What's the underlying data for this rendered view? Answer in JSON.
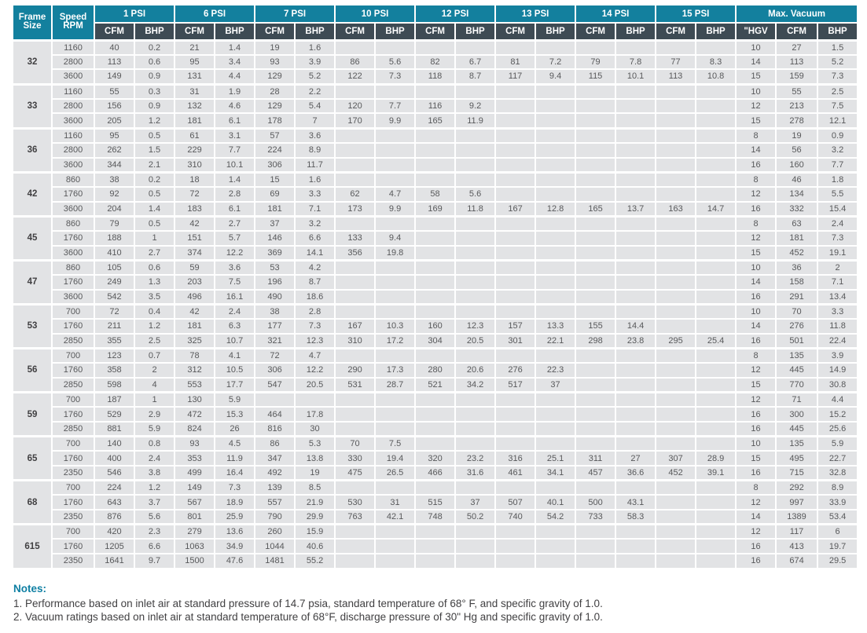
{
  "colors": {
    "header_teal": "#13809e",
    "subheader_slate": "#3e4b54",
    "cell_gray": "#e2e3e5",
    "notes_accent": "#0e7fa3"
  },
  "table": {
    "frame_header": {
      "line1": "Frame",
      "line2": "Size"
    },
    "speed_header": {
      "line1": "Speed",
      "line2": "RPM"
    },
    "psi_groups": [
      "1 PSI",
      "6 PSI",
      "7 PSI",
      "10 PSI",
      "12 PSI",
      "13 PSI",
      "14 PSI",
      "15 PSI"
    ],
    "psi_sub_headers": [
      "CFM",
      "BHP"
    ],
    "vacuum_group": "Max. Vacuum",
    "vacuum_sub_headers": [
      "\"HGV",
      "CFM",
      "BHP"
    ],
    "frames": [
      {
        "size": "32",
        "rows": [
          {
            "rpm": "1160",
            "cells": [
              "40",
              "0.2",
              "21",
              "1.4",
              "19",
              "1.6",
              "",
              "",
              "",
              "",
              "",
              "",
              "",
              "",
              "",
              "",
              "10",
              "27",
              "1.5"
            ]
          },
          {
            "rpm": "2800",
            "cells": [
              "113",
              "0.6",
              "95",
              "3.4",
              "93",
              "3.9",
              "86",
              "5.6",
              "82",
              "6.7",
              "81",
              "7.2",
              "79",
              "7.8",
              "77",
              "8.3",
              "14",
              "113",
              "5.2"
            ]
          },
          {
            "rpm": "3600",
            "cells": [
              "149",
              "0.9",
              "131",
              "4.4",
              "129",
              "5.2",
              "122",
              "7.3",
              "118",
              "8.7",
              "117",
              "9.4",
              "115",
              "10.1",
              "113",
              "10.8",
              "15",
              "159",
              "7.3"
            ]
          }
        ]
      },
      {
        "size": "33",
        "rows": [
          {
            "rpm": "1160",
            "cells": [
              "55",
              "0.3",
              "31",
              "1.9",
              "28",
              "2.2",
              "",
              "",
              "",
              "",
              "",
              "",
              "",
              "",
              "",
              "",
              "10",
              "55",
              "2.5"
            ]
          },
          {
            "rpm": "2800",
            "cells": [
              "156",
              "0.9",
              "132",
              "4.6",
              "129",
              "5.4",
              "120",
              "7.7",
              "116",
              "9.2",
              "",
              "",
              "",
              "",
              "",
              "",
              "12",
              "213",
              "7.5"
            ]
          },
          {
            "rpm": "3600",
            "cells": [
              "205",
              "1.2",
              "181",
              "6.1",
              "178",
              "7",
              "170",
              "9.9",
              "165",
              "11.9",
              "",
              "",
              "",
              "",
              "",
              "",
              "15",
              "278",
              "12.1"
            ]
          }
        ]
      },
      {
        "size": "36",
        "rows": [
          {
            "rpm": "1160",
            "cells": [
              "95",
              "0.5",
              "61",
              "3.1",
              "57",
              "3.6",
              "",
              "",
              "",
              "",
              "",
              "",
              "",
              "",
              "",
              "",
              "8",
              "19",
              "0.9"
            ]
          },
          {
            "rpm": "2800",
            "cells": [
              "262",
              "1.5",
              "229",
              "7.7",
              "224",
              "8.9",
              "",
              "",
              "",
              "",
              "",
              "",
              "",
              "",
              "",
              "",
              "14",
              "56",
              "3.2"
            ]
          },
          {
            "rpm": "3600",
            "cells": [
              "344",
              "2.1",
              "310",
              "10.1",
              "306",
              "11.7",
              "",
              "",
              "",
              "",
              "",
              "",
              "",
              "",
              "",
              "",
              "16",
              "160",
              "7.7"
            ]
          }
        ]
      },
      {
        "size": "42",
        "rows": [
          {
            "rpm": "860",
            "cells": [
              "38",
              "0.2",
              "18",
              "1.4",
              "15",
              "1.6",
              "",
              "",
              "",
              "",
              "",
              "",
              "",
              "",
              "",
              "",
              "8",
              "46",
              "1.8"
            ]
          },
          {
            "rpm": "1760",
            "cells": [
              "92",
              "0.5",
              "72",
              "2.8",
              "69",
              "3.3",
              "62",
              "4.7",
              "58",
              "5.6",
              "",
              "",
              "",
              "",
              "",
              "",
              "12",
              "134",
              "5.5"
            ]
          },
          {
            "rpm": "3600",
            "cells": [
              "204",
              "1.4",
              "183",
              "6.1",
              "181",
              "7.1",
              "173",
              "9.9",
              "169",
              "11.8",
              "167",
              "12.8",
              "165",
              "13.7",
              "163",
              "14.7",
              "16",
              "332",
              "15.4"
            ]
          }
        ]
      },
      {
        "size": "45",
        "rows": [
          {
            "rpm": "860",
            "cells": [
              "79",
              "0.5",
              "42",
              "2.7",
              "37",
              "3.2",
              "",
              "",
              "",
              "",
              "",
              "",
              "",
              "",
              "",
              "",
              "8",
              "63",
              "2.4"
            ]
          },
          {
            "rpm": "1760",
            "cells": [
              "188",
              "1",
              "151",
              "5.7",
              "146",
              "6.6",
              "133",
              "9.4",
              "",
              "",
              "",
              "",
              "",
              "",
              "",
              "",
              "12",
              "181",
              "7.3"
            ]
          },
          {
            "rpm": "3600",
            "cells": [
              "410",
              "2.7",
              "374",
              "12.2",
              "369",
              "14.1",
              "356",
              "19.8",
              "",
              "",
              "",
              "",
              "",
              "",
              "",
              "",
              "15",
              "452",
              "19.1"
            ]
          }
        ]
      },
      {
        "size": "47",
        "rows": [
          {
            "rpm": "860",
            "cells": [
              "105",
              "0.6",
              "59",
              "3.6",
              "53",
              "4.2",
              "",
              "",
              "",
              "",
              "",
              "",
              "",
              "",
              "",
              "",
              "10",
              "36",
              "2"
            ]
          },
          {
            "rpm": "1760",
            "cells": [
              "249",
              "1.3",
              "203",
              "7.5",
              "196",
              "8.7",
              "",
              "",
              "",
              "",
              "",
              "",
              "",
              "",
              "",
              "",
              "14",
              "158",
              "7.1"
            ]
          },
          {
            "rpm": "3600",
            "cells": [
              "542",
              "3.5",
              "496",
              "16.1",
              "490",
              "18.6",
              "",
              "",
              "",
              "",
              "",
              "",
              "",
              "",
              "",
              "",
              "16",
              "291",
              "13.4"
            ]
          }
        ]
      },
      {
        "size": "53",
        "rows": [
          {
            "rpm": "700",
            "cells": [
              "72",
              "0.4",
              "42",
              "2.4",
              "38",
              "2.8",
              "",
              "",
              "",
              "",
              "",
              "",
              "",
              "",
              "",
              "",
              "10",
              "70",
              "3.3"
            ]
          },
          {
            "rpm": "1760",
            "cells": [
              "211",
              "1.2",
              "181",
              "6.3",
              "177",
              "7.3",
              "167",
              "10.3",
              "160",
              "12.3",
              "157",
              "13.3",
              "155",
              "14.4",
              "",
              "",
              "14",
              "276",
              "11.8"
            ]
          },
          {
            "rpm": "2850",
            "cells": [
              "355",
              "2.5",
              "325",
              "10.7",
              "321",
              "12.3",
              "310",
              "17.2",
              "304",
              "20.5",
              "301",
              "22.1",
              "298",
              "23.8",
              "295",
              "25.4",
              "16",
              "501",
              "22.4"
            ]
          }
        ]
      },
      {
        "size": "56",
        "rows": [
          {
            "rpm": "700",
            "cells": [
              "123",
              "0.7",
              "78",
              "4.1",
              "72",
              "4.7",
              "",
              "",
              "",
              "",
              "",
              "",
              "",
              "",
              "",
              "",
              "8",
              "135",
              "3.9"
            ]
          },
          {
            "rpm": "1760",
            "cells": [
              "358",
              "2",
              "312",
              "10.5",
              "306",
              "12.2",
              "290",
              "17.3",
              "280",
              "20.6",
              "276",
              "22.3",
              "",
              "",
              "",
              "",
              "12",
              "445",
              "14.9"
            ]
          },
          {
            "rpm": "2850",
            "cells": [
              "598",
              "4",
              "553",
              "17.7",
              "547",
              "20.5",
              "531",
              "28.7",
              "521",
              "34.2",
              "517",
              "37",
              "",
              "",
              "",
              "",
              "15",
              "770",
              "30.8"
            ]
          }
        ]
      },
      {
        "size": "59",
        "rows": [
          {
            "rpm": "700",
            "cells": [
              "187",
              "1",
              "130",
              "5.9",
              "",
              "",
              "",
              "",
              "",
              "",
              "",
              "",
              "",
              "",
              "",
              "",
              "12",
              "71",
              "4.4"
            ]
          },
          {
            "rpm": "1760",
            "cells": [
              "529",
              "2.9",
              "472",
              "15.3",
              "464",
              "17.8",
              "",
              "",
              "",
              "",
              "",
              "",
              "",
              "",
              "",
              "",
              "16",
              "300",
              "15.2"
            ]
          },
          {
            "rpm": "2850",
            "cells": [
              "881",
              "5.9",
              "824",
              "26",
              "816",
              "30",
              "",
              "",
              "",
              "",
              "",
              "",
              "",
              "",
              "",
              "",
              "16",
              "445",
              "25.6"
            ]
          }
        ]
      },
      {
        "size": "65",
        "rows": [
          {
            "rpm": "700",
            "cells": [
              "140",
              "0.8",
              "93",
              "4.5",
              "86",
              "5.3",
              "70",
              "7.5",
              "",
              "",
              "",
              "",
              "",
              "",
              "",
              "",
              "10",
              "135",
              "5.9"
            ]
          },
          {
            "rpm": "1760",
            "cells": [
              "400",
              "2.4",
              "353",
              "11.9",
              "347",
              "13.8",
              "330",
              "19.4",
              "320",
              "23.2",
              "316",
              "25.1",
              "311",
              "27",
              "307",
              "28.9",
              "15",
              "495",
              "22.7"
            ]
          },
          {
            "rpm": "2350",
            "cells": [
              "546",
              "3.8",
              "499",
              "16.4",
              "492",
              "19",
              "475",
              "26.5",
              "466",
              "31.6",
              "461",
              "34.1",
              "457",
              "36.6",
              "452",
              "39.1",
              "16",
              "715",
              "32.8"
            ]
          }
        ]
      },
      {
        "size": "68",
        "rows": [
          {
            "rpm": "700",
            "cells": [
              "224",
              "1.2",
              "149",
              "7.3",
              "139",
              "8.5",
              "",
              "",
              "",
              "",
              "",
              "",
              "",
              "",
              "",
              "",
              "8",
              "292",
              "8.9"
            ]
          },
          {
            "rpm": "1760",
            "cells": [
              "643",
              "3.7",
              "567",
              "18.9",
              "557",
              "21.9",
              "530",
              "31",
              "515",
              "37",
              "507",
              "40.1",
              "500",
              "43.1",
              "",
              "",
              "12",
              "997",
              "33.9"
            ]
          },
          {
            "rpm": "2350",
            "cells": [
              "876",
              "5.6",
              "801",
              "25.9",
              "790",
              "29.9",
              "763",
              "42.1",
              "748",
              "50.2",
              "740",
              "54.2",
              "733",
              "58.3",
              "",
              "",
              "14",
              "1389",
              "53.4"
            ]
          }
        ]
      },
      {
        "size": "615",
        "rows": [
          {
            "rpm": "700",
            "cells": [
              "420",
              "2.3",
              "279",
              "13.6",
              "260",
              "15.9",
              "",
              "",
              "",
              "",
              "",
              "",
              "",
              "",
              "",
              "",
              "12",
              "117",
              "6"
            ]
          },
          {
            "rpm": "1760",
            "cells": [
              "1205",
              "6.6",
              "1063",
              "34.9",
              "1044",
              "40.6",
              "",
              "",
              "",
              "",
              "",
              "",
              "",
              "",
              "",
              "",
              "16",
              "413",
              "19.7"
            ]
          },
          {
            "rpm": "2350",
            "cells": [
              "1641",
              "9.7",
              "1500",
              "47.6",
              "1481",
              "55.2",
              "",
              "",
              "",
              "",
              "",
              "",
              "",
              "",
              "",
              "",
              "16",
              "674",
              "29.5"
            ]
          }
        ]
      }
    ]
  },
  "notes": {
    "heading": "Notes:",
    "items": [
      "1.  Performance based on inlet air at standard pressure of 14.7 psia, standard temperature of 68° F, and specific gravity of 1.0.",
      "2.  Vacuum ratings based on inlet air at standard temperature of 68°F, discharge pressure of 30\" Hg and specific gravity of 1.0."
    ]
  }
}
